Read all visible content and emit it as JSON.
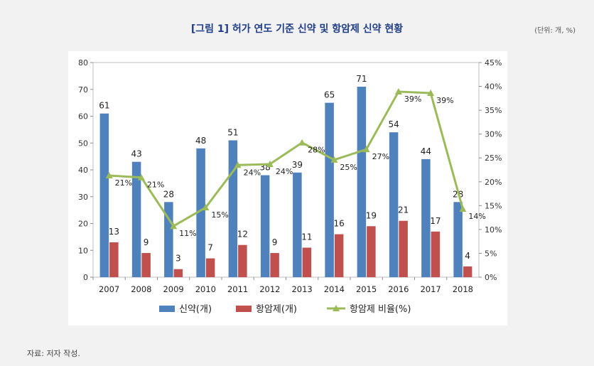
{
  "header": {
    "title": "[그림 1] 허가 연도 기준 신약 및 항암제 신약 현황",
    "unit": "(단위: 개, %)"
  },
  "footer": {
    "source": "자료: 저자 작성."
  },
  "colors": {
    "blue": "#4f81bd",
    "red": "#c0504d",
    "green": "#9bbb59",
    "title": "#1f3e86"
  },
  "chart_data": {
    "type": "bar",
    "title": "[그림 1] 허가 연도 기준 신약 및 항암제 신약 현황",
    "categories": [
      "2007",
      "2008",
      "2009",
      "2010",
      "2011",
      "2012",
      "2013",
      "2014",
      "2015",
      "2016",
      "2017",
      "2018"
    ],
    "series": [
      {
        "name": "신약(개)",
        "type": "bar",
        "axis": "left",
        "values": [
          61,
          43,
          28,
          48,
          51,
          38,
          39,
          65,
          71,
          54,
          44,
          28
        ]
      },
      {
        "name": "항암제(개)",
        "type": "bar",
        "axis": "left",
        "values": [
          13,
          9,
          3,
          7,
          12,
          9,
          11,
          16,
          19,
          21,
          17,
          4
        ]
      },
      {
        "name": "항암제 비율(%)",
        "type": "line",
        "axis": "right",
        "values": [
          21.3,
          20.9,
          10.7,
          14.6,
          23.5,
          23.7,
          28.2,
          24.6,
          26.8,
          38.9,
          38.6,
          14.3
        ]
      }
    ],
    "ratio_labels": [
      "21%",
      "21%",
      "11%",
      "15%",
      "24%",
      "24%",
      "28%",
      "25%",
      "27%",
      "39%",
      "39%",
      "14%"
    ],
    "y_left": {
      "min": 0,
      "max": 80,
      "ticks": [
        "0",
        "10",
        "20",
        "30",
        "40",
        "50",
        "60",
        "70",
        "80"
      ]
    },
    "y_right": {
      "min": 0,
      "max": 45,
      "ticks": [
        "0%",
        "5%",
        "10%",
        "15%",
        "20%",
        "25%",
        "30%",
        "35%",
        "40%",
        "45%"
      ]
    },
    "legend_position": "bottom"
  }
}
